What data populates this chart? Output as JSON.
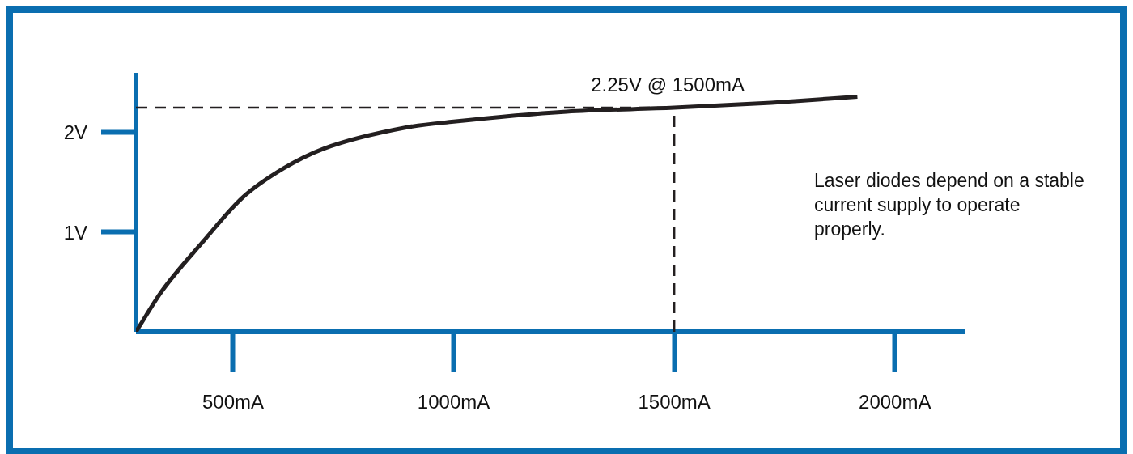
{
  "chart_data": {
    "type": "line",
    "x": [
      280,
      339,
      431,
      522,
      614,
      706,
      890,
      1000,
      1256,
      1500,
      1720,
      1915
    ],
    "series": [
      {
        "color": "#231f20",
        "values": [
          0,
          0.41,
          0.9,
          1.35,
          1.64,
          1.84,
          2.05,
          2.11,
          2.21,
          2.25,
          2.3,
          2.36
        ]
      }
    ],
    "xlim": [
      280,
      2160
    ],
    "ylim": [
      0,
      2.6
    ],
    "xticks": [
      {
        "value": 500,
        "label": "500mA"
      },
      {
        "value": 1000,
        "label": "1000mA"
      },
      {
        "value": 1500,
        "label": "1500mA"
      },
      {
        "value": 2000,
        "label": "2000mA"
      }
    ],
    "yticks": [
      {
        "value": 1,
        "label": "1V"
      },
      {
        "value": 2,
        "label": "2V"
      }
    ],
    "ref_lines": [
      {
        "axis": "y",
        "value": 2.25,
        "color": "#231f20",
        "line_style": "dashed"
      },
      {
        "axis": "x",
        "value": 1500,
        "color": "#231f20",
        "line_style": "dashed"
      }
    ],
    "annotations": [
      {
        "text": "2.25V @ 1500mA",
        "x": 1500,
        "y": 2.25
      },
      "Laser diodes depend on a stable current supply to operate properly."
    ],
    "grid": false,
    "legend": false,
    "marker": "none",
    "line_style": "solid"
  }
}
